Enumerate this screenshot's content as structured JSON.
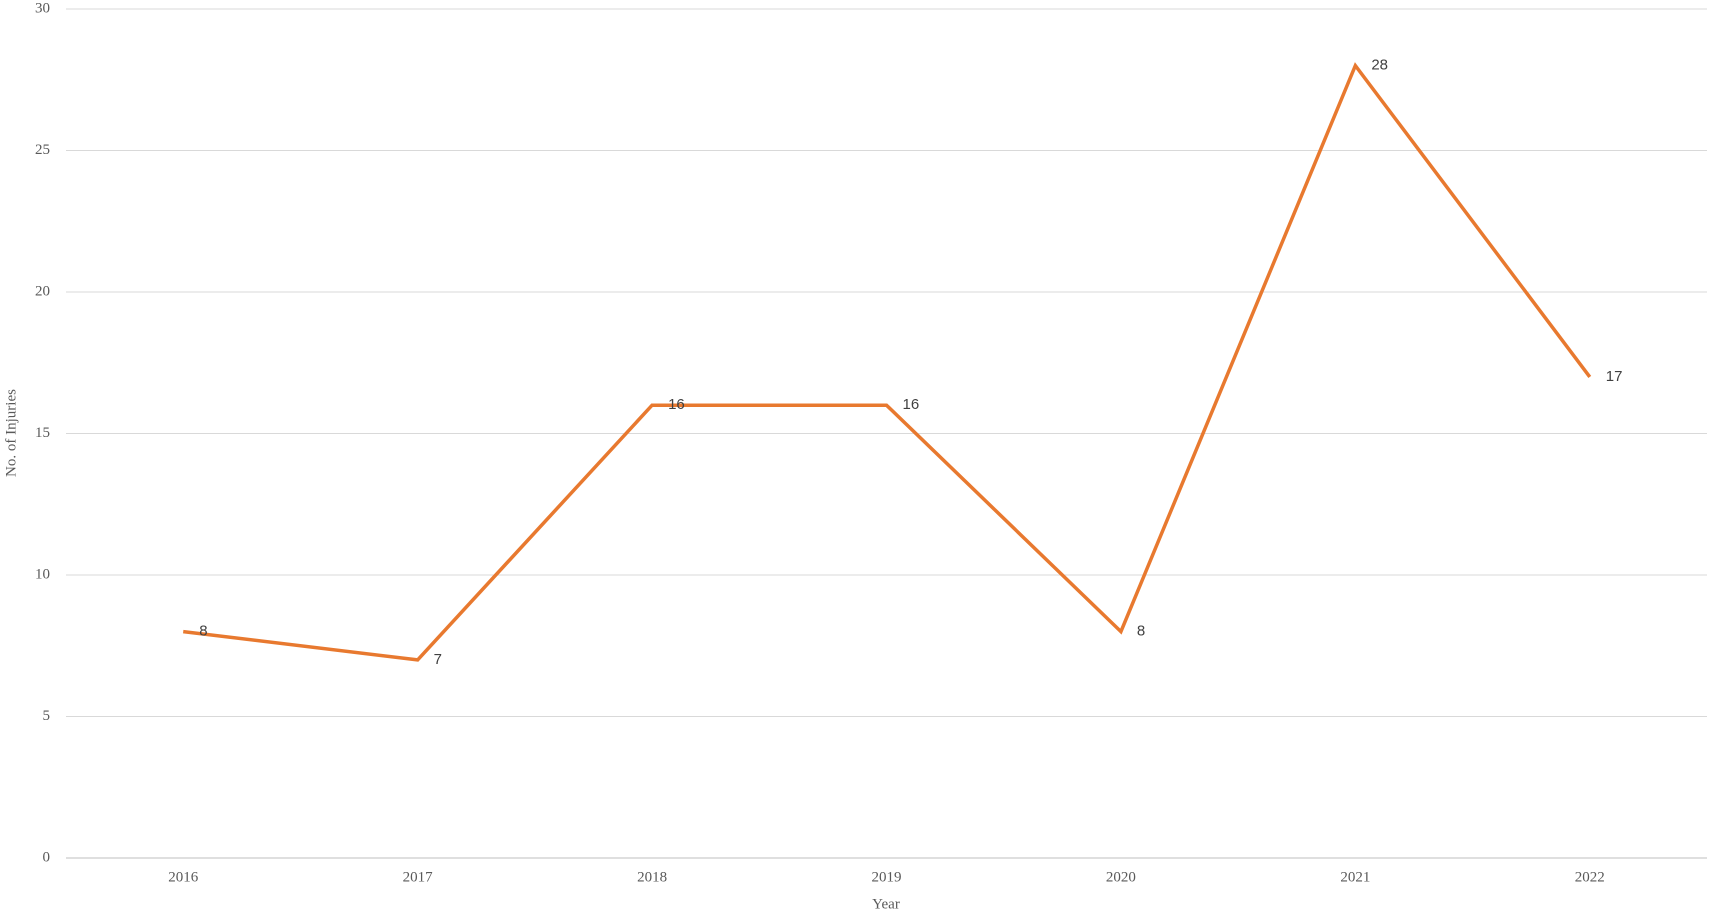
{
  "chart_data": {
    "type": "line",
    "categories": [
      "2016",
      "2017",
      "2018",
      "2019",
      "2020",
      "2021",
      "2022"
    ],
    "values": [
      8,
      7,
      16,
      16,
      8,
      28,
      17
    ],
    "color": "#e8792f",
    "xlabel": "Year",
    "ylabel": "No. of Injuries",
    "ylim": [
      0,
      30
    ],
    "yticks": [
      0,
      5,
      10,
      15,
      20,
      25,
      30
    ],
    "grid": true
  }
}
